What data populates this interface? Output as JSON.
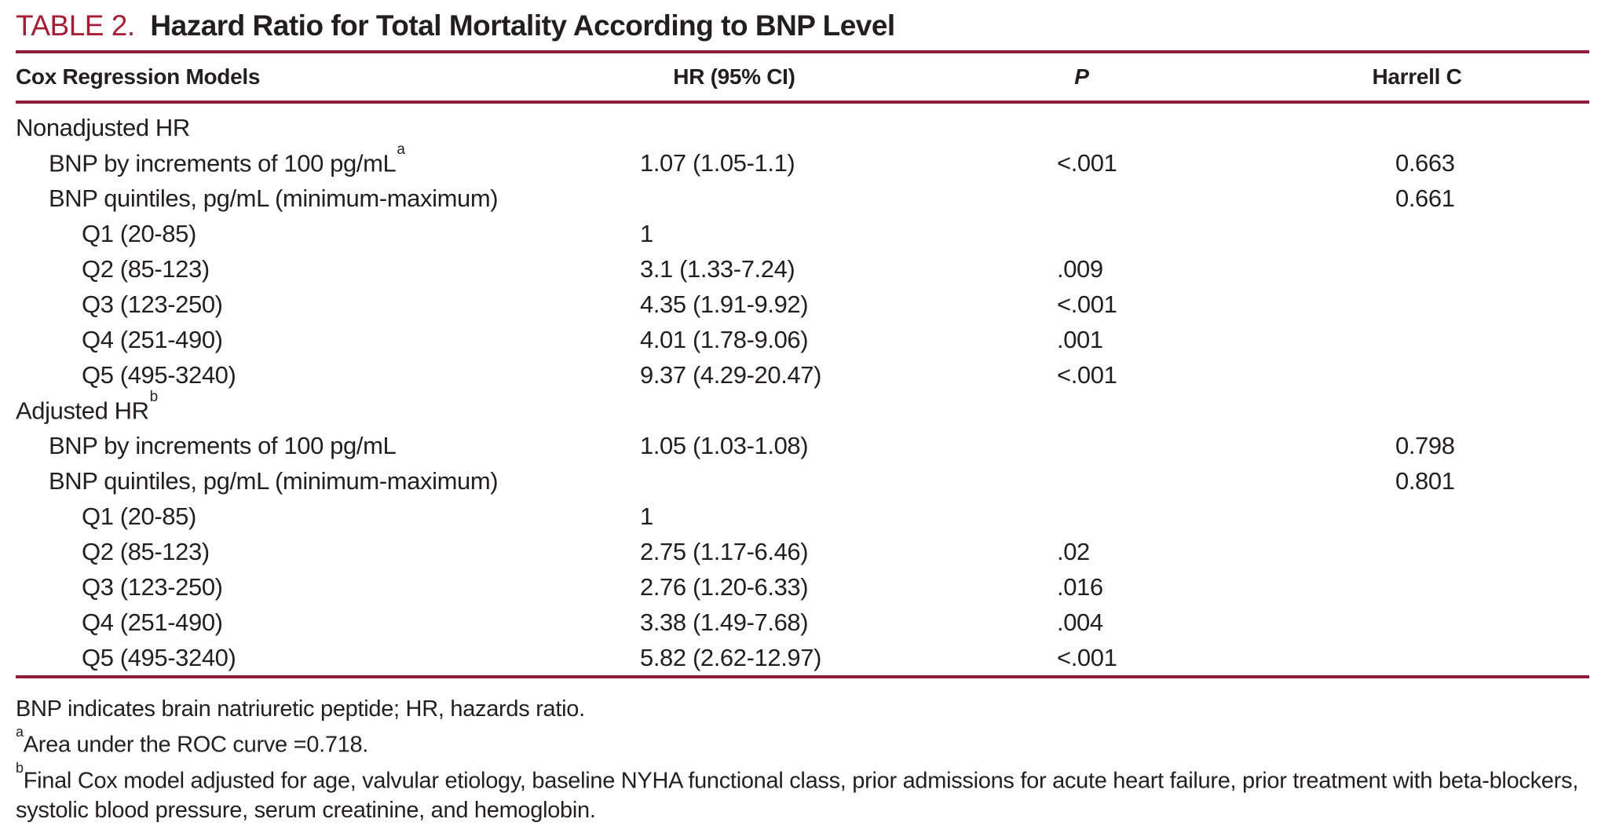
{
  "caption": {
    "label": "TABLE 2.",
    "title": "Hazard Ratio for Total Mortality According to BNP Level"
  },
  "columns": {
    "models": "Cox Regression Models",
    "hr": "HR (95% CI)",
    "p": "P",
    "harrell_c": "Harrell C"
  },
  "rows": [
    {
      "label": "Nonadjusted HR",
      "sup": "",
      "indent": 0,
      "hr": "",
      "p": "",
      "c": ""
    },
    {
      "label": "BNP by increments of 100 pg/mL",
      "sup": "a",
      "indent": 1,
      "hr": "1.07 (1.05-1.1)",
      "p": "<.001",
      "c": "0.663"
    },
    {
      "label": "BNP quintiles, pg/mL (minimum-maximum)",
      "sup": "",
      "indent": 1,
      "hr": "",
      "p": "",
      "c": "0.661"
    },
    {
      "label": "Q1 (20-85)",
      "sup": "",
      "indent": 2,
      "hr": "1",
      "p": "",
      "c": ""
    },
    {
      "label": "Q2 (85-123)",
      "sup": "",
      "indent": 2,
      "hr": "3.1 (1.33-7.24)",
      "p": ".009",
      "c": ""
    },
    {
      "label": "Q3 (123-250)",
      "sup": "",
      "indent": 2,
      "hr": "4.35 (1.91-9.92)",
      "p": "<.001",
      "c": ""
    },
    {
      "label": "Q4 (251-490)",
      "sup": "",
      "indent": 2,
      "hr": "4.01 (1.78-9.06)",
      "p": ".001",
      "c": ""
    },
    {
      "label": "Q5 (495-3240)",
      "sup": "",
      "indent": 2,
      "hr": "9.37 (4.29-20.47)",
      "p": "<.001",
      "c": ""
    },
    {
      "label": "Adjusted HR",
      "sup": "b",
      "indent": 0,
      "hr": "",
      "p": "",
      "c": ""
    },
    {
      "label": "BNP by increments of 100 pg/mL",
      "sup": "",
      "indent": 1,
      "hr": "1.05 (1.03-1.08)",
      "p": "",
      "c": "0.798"
    },
    {
      "label": "BNP quintiles, pg/mL (minimum-maximum)",
      "sup": "",
      "indent": 1,
      "hr": "",
      "p": "",
      "c": "0.801"
    },
    {
      "label": "Q1 (20-85)",
      "sup": "",
      "indent": 2,
      "hr": "1",
      "p": "",
      "c": ""
    },
    {
      "label": "Q2 (85-123)",
      "sup": "",
      "indent": 2,
      "hr": "2.75 (1.17-6.46)",
      "p": ".02",
      "c": ""
    },
    {
      "label": "Q3 (123-250)",
      "sup": "",
      "indent": 2,
      "hr": "2.76 (1.20-6.33)",
      "p": ".016",
      "c": ""
    },
    {
      "label": "Q4 (251-490)",
      "sup": "",
      "indent": 2,
      "hr": "3.38 (1.49-7.68)",
      "p": ".004",
      "c": ""
    },
    {
      "label": "Q5 (495-3240)",
      "sup": "",
      "indent": 2,
      "hr": "5.82 (2.62-12.97)",
      "p": "<.001",
      "c": ""
    }
  ],
  "footnotes": [
    {
      "sup": "",
      "text": "BNP indicates brain natriuretic peptide; HR, hazards ratio."
    },
    {
      "sup": "a",
      "text": "Area under the ROC curve =0.718."
    },
    {
      "sup": "b",
      "text": "Final Cox model adjusted for age, valvular etiology, baseline NYHA functional class, prior admissions for acute heart failure, prior treatment with beta-blockers, systolic blood pressure, serum creatinine, and hemoglobin."
    }
  ],
  "colors": {
    "rule": "#8E1D3E",
    "caption_label": "#A41E35",
    "text": "#231F20"
  }
}
